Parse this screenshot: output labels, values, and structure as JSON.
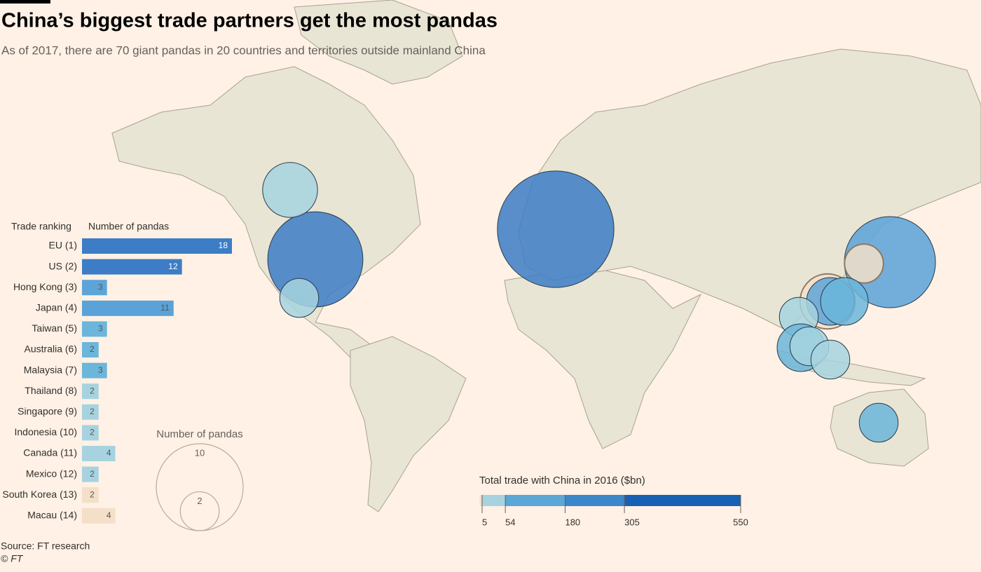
{
  "title": "China’s biggest trade partners get the most pandas",
  "subtitle": "As of 2017, there are 70 giant pandas in 20 countries and territories outside mainland China",
  "source": "Source: FT research",
  "copyright": "© FT",
  "chart_data": [
    {
      "type": "bar",
      "orientation": "horizontal",
      "category_header": "Trade ranking",
      "value_header": "Number of pandas",
      "categories": [
        "EU (1)",
        "US (2)",
        "Hong Kong (3)",
        "Japan (4)",
        "Taiwan (5)",
        "Australia (6)",
        "Malaysia (7)",
        "Thailand (8)",
        "Singapore (9)",
        "Indonesia (10)",
        "Canada (11)",
        "Mexico (12)",
        "South Korea (13)",
        "Macau (14)"
      ],
      "values": [
        18,
        12,
        3,
        11,
        3,
        2,
        3,
        2,
        2,
        2,
        4,
        2,
        2,
        4
      ],
      "colors": [
        "#3c7dc6",
        "#3c7dc6",
        "#5da5d8",
        "#5aa2d8",
        "#6bb6da",
        "#6bb6da",
        "#6bb6da",
        "#a6d3df",
        "#a6d3df",
        "#a6d3df",
        "#a6d3df",
        "#a6d3df",
        "#f4dfc9",
        "#f4dfc9"
      ],
      "xlim": [
        0,
        18
      ]
    },
    {
      "type": "size-legend",
      "title": "Number of pandas",
      "values": [
        10,
        2
      ]
    },
    {
      "type": "colorbar",
      "title": "Total trade with China in 2016 ($bn)",
      "xlim": [
        0,
        550
      ],
      "ticks": [
        5,
        54,
        180,
        305,
        550
      ],
      "colors": [
        "#f4dfc9",
        "#a6d3df",
        "#5aa7d8",
        "#3a87cc",
        "#1760b3"
      ]
    }
  ]
}
